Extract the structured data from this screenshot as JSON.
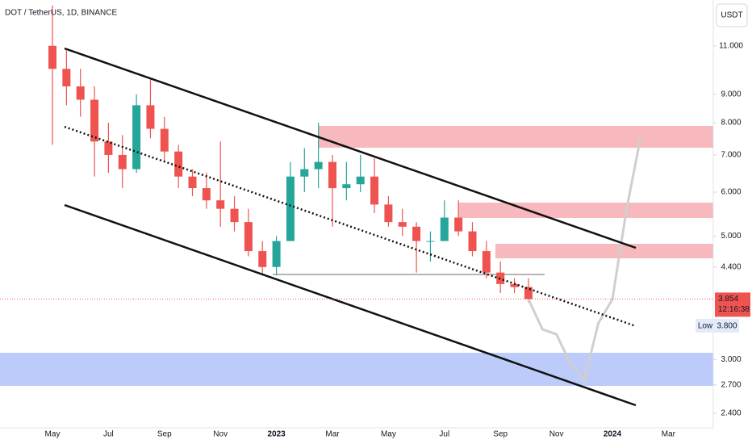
{
  "chart_data": {
    "type": "candlestick",
    "title": "DOT / TetherUS, 1D, BINANCE",
    "currency_button": "USDT",
    "categories": [
      "May",
      null,
      null,
      null,
      "Jul",
      null,
      null,
      null,
      "Sep",
      null,
      null,
      null,
      "Nov",
      null,
      null,
      null,
      "2023",
      null,
      null,
      null,
      "Mar",
      null,
      null,
      null,
      "May",
      null,
      null,
      null,
      "Jul",
      null,
      null,
      null,
      "Sep",
      null,
      null,
      null,
      "Nov",
      null,
      null,
      null,
      "2024",
      null,
      null,
      null,
      "Mar",
      null,
      null
    ],
    "open": [
      11,
      10,
      9.3,
      8.8,
      7.4,
      7,
      6.6,
      8.6,
      7.8,
      7.1,
      6.4,
      6.1,
      5.8,
      5.6,
      5.3,
      4.7,
      4.4,
      4.9,
      6.4,
      6.6,
      6.8,
      6.1,
      6.2,
      6.4,
      5.7,
      5.3,
      5.2,
      4.9,
      4.9,
      5.4,
      5.1,
      4.7,
      4.3,
      4.1,
      4.05,
      null,
      null,
      null,
      null,
      null,
      null,
      null,
      null,
      null,
      null,
      null,
      null
    ],
    "high": [
      13,
      10.8,
      10,
      9.3,
      8,
      7.6,
      9,
      9.6,
      8.2,
      7.3,
      6.6,
      6.5,
      7.4,
      5.9,
      5.6,
      4.9,
      5.0,
      6.8,
      7.2,
      8,
      7,
      6.8,
      7,
      6.9,
      5.9,
      5.6,
      5.3,
      5.1,
      5.8,
      5.8,
      5.3,
      4.9,
      4.5,
      4.2,
      4.2,
      null,
      null,
      null,
      null,
      null,
      null,
      null,
      null,
      null,
      null,
      null,
      null
    ],
    "low": [
      7.3,
      8.6,
      8.2,
      6.4,
      6.5,
      6.1,
      6.5,
      7.5,
      6.8,
      6.1,
      5.9,
      5.6,
      5.2,
      5.1,
      4.6,
      4.25,
      4.25,
      4.9,
      6,
      6.1,
      5.2,
      5.8,
      6,
      5.5,
      5.2,
      5,
      4.3,
      4.5,
      4.9,
      5,
      4.6,
      4.2,
      3.95,
      3.95,
      3.8,
      null,
      null,
      null,
      null,
      null,
      null,
      null,
      null,
      null,
      null,
      null,
      null
    ],
    "close": [
      10,
      9.3,
      8.8,
      7.4,
      7,
      6.6,
      8.6,
      7.8,
      7.1,
      6.4,
      6.1,
      5.8,
      5.6,
      5.3,
      4.7,
      4.4,
      4.9,
      6.4,
      6.6,
      6.8,
      6.1,
      6.2,
      6.4,
      5.7,
      5.3,
      5.2,
      4.9,
      4.9,
      5.4,
      5.1,
      4.7,
      4.3,
      4.1,
      4.05,
      3.854,
      null,
      null,
      null,
      null,
      null,
      null,
      null,
      null,
      null,
      null,
      null,
      null
    ],
    "up_color": "#26a69a",
    "down_color": "#ef5350",
    "projection": {
      "color": "#cfcfcf",
      "values": [
        null,
        null,
        null,
        null,
        null,
        null,
        null,
        null,
        null,
        null,
        null,
        null,
        null,
        null,
        null,
        null,
        null,
        null,
        null,
        null,
        null,
        null,
        null,
        null,
        null,
        null,
        null,
        null,
        null,
        null,
        null,
        null,
        null,
        null,
        3.85,
        3.4,
        3.33,
        2.95,
        2.76,
        3.49,
        3.85,
        5.57,
        7.5,
        null,
        null,
        null,
        null
      ]
    },
    "log_scale": true,
    "ylim": [
      2.26,
      13.3
    ],
    "yticks": [
      {
        "value": 11,
        "label": "11.000"
      },
      {
        "value": 9,
        "label": "9.000"
      },
      {
        "value": 8,
        "label": "8.000"
      },
      {
        "value": 7,
        "label": "7.000"
      },
      {
        "value": 6,
        "label": "6.000"
      },
      {
        "value": 5,
        "label": "5.000"
      },
      {
        "value": 4.4,
        "label": "4.400"
      },
      {
        "value": 3,
        "label": "3.000"
      },
      {
        "value": 2.7,
        "label": "2.700"
      },
      {
        "value": 2.4,
        "label": "2.400"
      }
    ],
    "current_price": 3.854,
    "countdown": "12:16:38",
    "low_label": "Low",
    "low_price": "3.800"
  }
}
